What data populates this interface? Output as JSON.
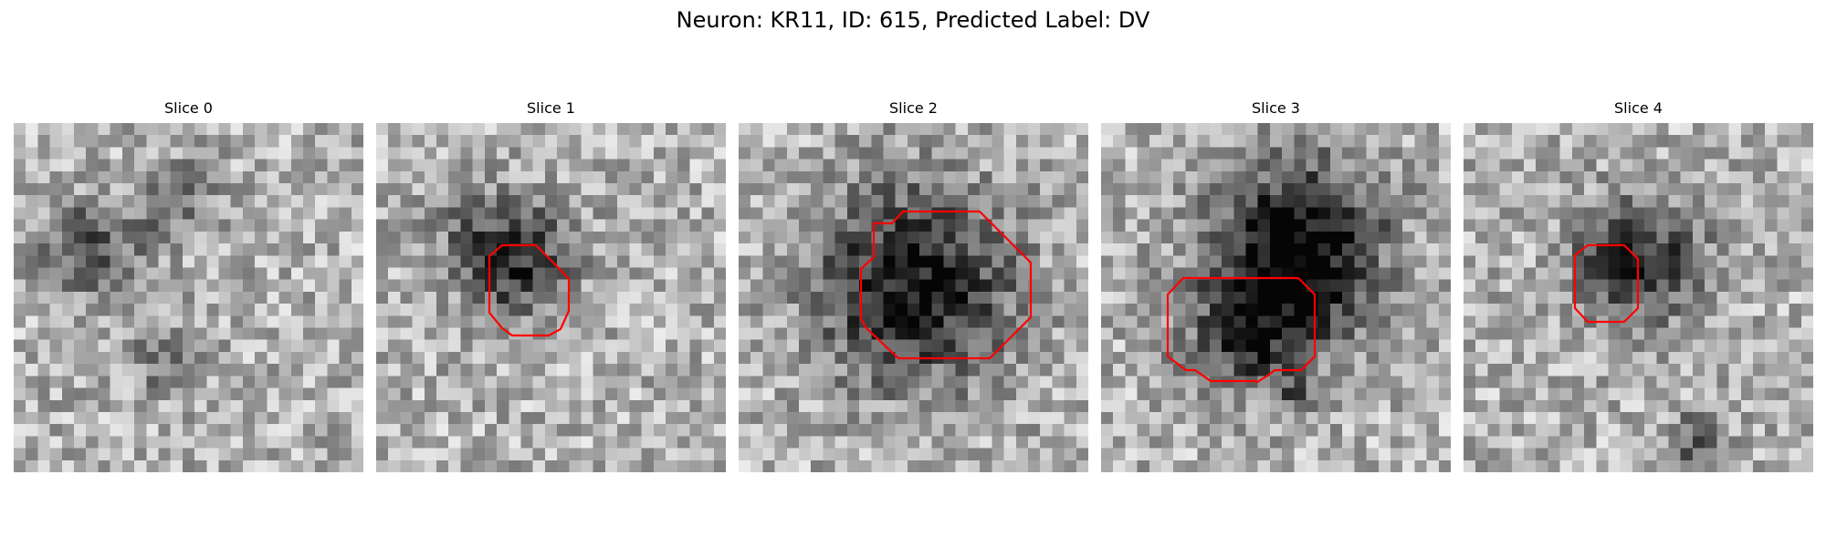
{
  "suptitle": "Neuron: KR11, ID: 615, Predicted Label: DV",
  "panels": [
    {
      "title": "Slice 0",
      "has_roi": false
    },
    {
      "title": "Slice 1",
      "has_roi": true
    },
    {
      "title": "Slice 2",
      "has_roi": true
    },
    {
      "title": "Slice 3",
      "has_roi": true
    },
    {
      "title": "Slice 4",
      "has_roi": true
    }
  ],
  "colors": {
    "roi_outline": "#ff0000",
    "colormap": "grayscale"
  }
}
